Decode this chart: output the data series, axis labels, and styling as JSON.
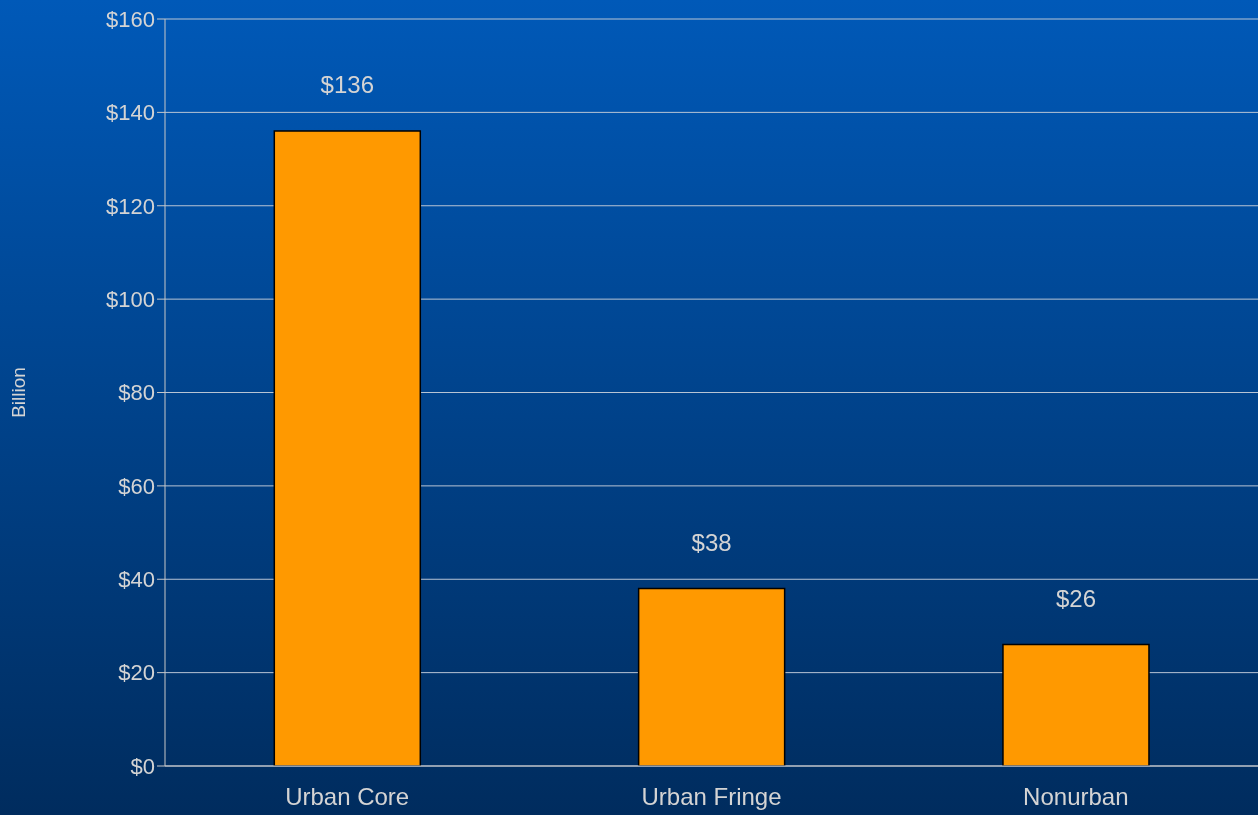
{
  "chart_data": {
    "type": "bar",
    "ylabel": "Billion",
    "categories": [
      "Urban Core",
      "Urban Fringe",
      "Nonurban"
    ],
    "values": [
      136,
      38,
      26
    ],
    "color": "#ff9900",
    "value_labels": [
      "$136",
      "$38",
      "$26"
    ],
    "ylim": [
      0,
      160
    ],
    "yticks": [
      {
        "value": 0,
        "label": "$0"
      },
      {
        "value": 20,
        "label": "$20"
      },
      {
        "value": 40,
        "label": "$40"
      },
      {
        "value": 60,
        "label": "$60"
      },
      {
        "value": 80,
        "label": "$80"
      },
      {
        "value": 100,
        "label": "$100"
      },
      {
        "value": 120,
        "label": "$120"
      },
      {
        "value": 140,
        "label": "$140"
      },
      {
        "value": 160,
        "label": "$160"
      }
    ],
    "grid": "y",
    "legend": false
  }
}
